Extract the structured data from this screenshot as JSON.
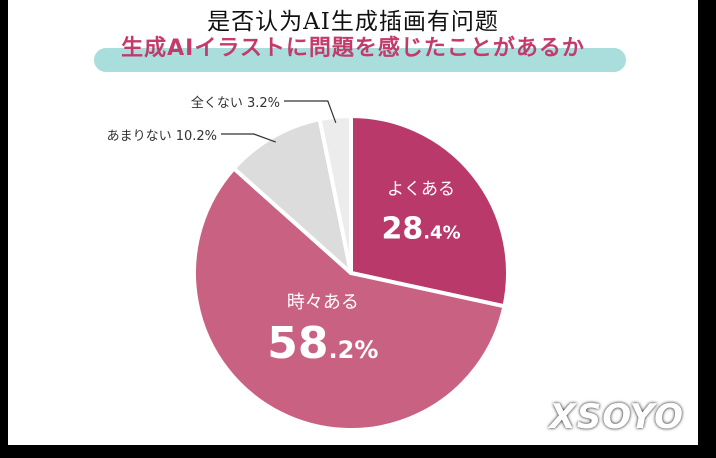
{
  "page": {
    "title": "是否认为AI生成插画有问题",
    "subtitle": "生成AIイラストに問題を感じたことがあるか",
    "watermark": "XSOYO"
  },
  "chart_data": {
    "type": "pie",
    "title": "生成AIイラストに問題を感じたことがあるか",
    "start": "12 o'clock, clockwise",
    "slices": [
      {
        "label": "よくある",
        "value": 28.4,
        "int": "28",
        "dec": ".4%",
        "color": "#b93a6a",
        "label_position": "inside"
      },
      {
        "label": "時々ある",
        "value": 58.2,
        "int": "58",
        "dec": ".2%",
        "color": "#c96183",
        "label_position": "inside"
      },
      {
        "label": "あまりない",
        "value": 10.2,
        "text": "あまりない 10.2%",
        "color": "#dcdcdc",
        "label_position": "outside-left"
      },
      {
        "label": "全くない",
        "value": 3.2,
        "text": "全くない 3.2%",
        "color": "#ececec",
        "label_position": "outside-left"
      }
    ]
  }
}
